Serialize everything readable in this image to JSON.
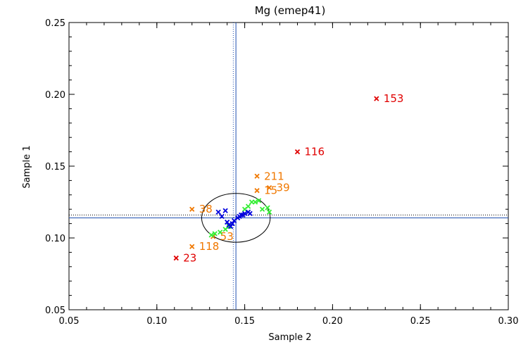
{
  "chart_data": {
    "type": "scatter",
    "title": "Mg (emep41)",
    "xlabel": "Sample 2",
    "ylabel": "Sample 1",
    "xlim": [
      0.05,
      0.3
    ],
    "ylim": [
      0.05,
      0.25
    ],
    "xticks": [
      "0.05",
      "0.10",
      "0.15",
      "0.20",
      "0.25",
      "0.30"
    ],
    "yticks": [
      "0.05",
      "0.10",
      "0.15",
      "0.20",
      "0.25"
    ],
    "reference_lines": {
      "x_median": 0.145,
      "x_mean": 0.1435,
      "y_median": 0.114,
      "y_mean": 0.116
    },
    "ellipse": {
      "cx": 0.145,
      "cy": 0.114,
      "rx": 0.0195,
      "ry": 0.017
    },
    "colors": {
      "outlier_red": "#e00000",
      "outlier_orange": "#f07800",
      "green": "#33ee33",
      "blue": "#0000dd",
      "lines": "#2050b0"
    },
    "series": [
      {
        "color": "#e00000",
        "points": [
          {
            "x": 0.225,
            "y": 0.197,
            "label": "153"
          },
          {
            "x": 0.18,
            "y": 0.16,
            "label": "116"
          },
          {
            "x": 0.111,
            "y": 0.086,
            "label": "23"
          }
        ]
      },
      {
        "color": "#f07800",
        "points": [
          {
            "x": 0.157,
            "y": 0.143,
            "label": "211"
          },
          {
            "x": 0.157,
            "y": 0.133,
            "label": "15"
          },
          {
            "x": 0.164,
            "y": 0.135,
            "label": "39"
          },
          {
            "x": 0.12,
            "y": 0.12,
            "label": "38"
          },
          {
            "x": 0.12,
            "y": 0.094,
            "label": "118"
          },
          {
            "x": 0.132,
            "y": 0.101,
            "label": "53"
          }
        ]
      },
      {
        "color": "#33ee33",
        "points": [
          {
            "x": 0.131,
            "y": 0.102
          },
          {
            "x": 0.133,
            "y": 0.103
          },
          {
            "x": 0.136,
            "y": 0.104
          },
          {
            "x": 0.139,
            "y": 0.106
          },
          {
            "x": 0.141,
            "y": 0.108
          },
          {
            "x": 0.15,
            "y": 0.12
          },
          {
            "x": 0.152,
            "y": 0.122
          },
          {
            "x": 0.154,
            "y": 0.125
          },
          {
            "x": 0.156,
            "y": 0.125
          },
          {
            "x": 0.158,
            "y": 0.126
          },
          {
            "x": 0.16,
            "y": 0.12
          },
          {
            "x": 0.163,
            "y": 0.121
          },
          {
            "x": 0.164,
            "y": 0.118
          }
        ]
      },
      {
        "color": "#0000dd",
        "points": [
          {
            "x": 0.135,
            "y": 0.118
          },
          {
            "x": 0.137,
            "y": 0.115
          },
          {
            "x": 0.139,
            "y": 0.119
          },
          {
            "x": 0.14,
            "y": 0.111
          },
          {
            "x": 0.141,
            "y": 0.109
          },
          {
            "x": 0.142,
            "y": 0.108
          },
          {
            "x": 0.143,
            "y": 0.11
          },
          {
            "x": 0.144,
            "y": 0.112
          },
          {
            "x": 0.146,
            "y": 0.114
          },
          {
            "x": 0.147,
            "y": 0.115
          },
          {
            "x": 0.148,
            "y": 0.116
          },
          {
            "x": 0.149,
            "y": 0.116
          },
          {
            "x": 0.15,
            "y": 0.117
          },
          {
            "x": 0.152,
            "y": 0.118
          },
          {
            "x": 0.153,
            "y": 0.117
          }
        ]
      }
    ],
    "grid": false,
    "legend": "none"
  }
}
